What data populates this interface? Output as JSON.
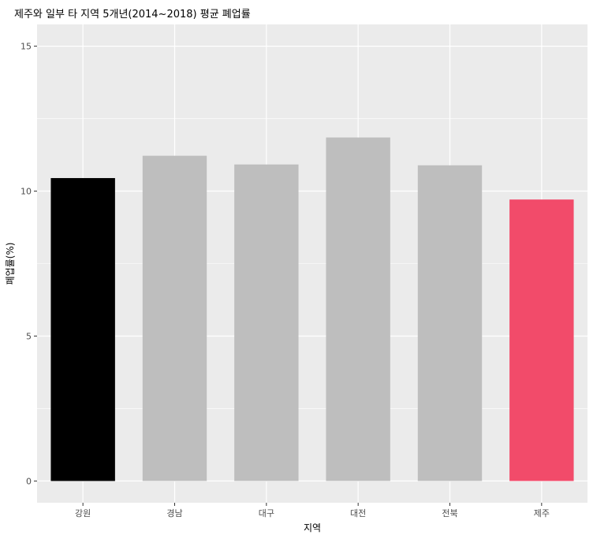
{
  "chart_data": {
    "type": "bar",
    "title": "제주와 일부 타 지역 5개년(2014~2018) 평균 폐업률",
    "xlabel": "지역",
    "ylabel": "폐업률(%)",
    "categories": [
      "강원",
      "경남",
      "대구",
      "대전",
      "전북",
      "제주"
    ],
    "values": [
      10.45,
      11.22,
      10.92,
      11.85,
      10.89,
      9.71
    ],
    "bar_colors": [
      "#000000",
      "#bebebe",
      "#bebebe",
      "#bebebe",
      "#bebebe",
      "#f24b6a"
    ],
    "ylim": [
      -0.75,
      15.75
    ],
    "y_ticks": [
      0,
      5,
      10,
      15
    ],
    "y_tick_labels": [
      "0",
      "5",
      "10",
      "15"
    ],
    "grid": true,
    "legend": "none",
    "colors": {
      "panel_background": "#ebebeb",
      "grid_line": "#ffffff",
      "tick_text": "#4d4d4d",
      "tick_mark": "#333333"
    }
  }
}
